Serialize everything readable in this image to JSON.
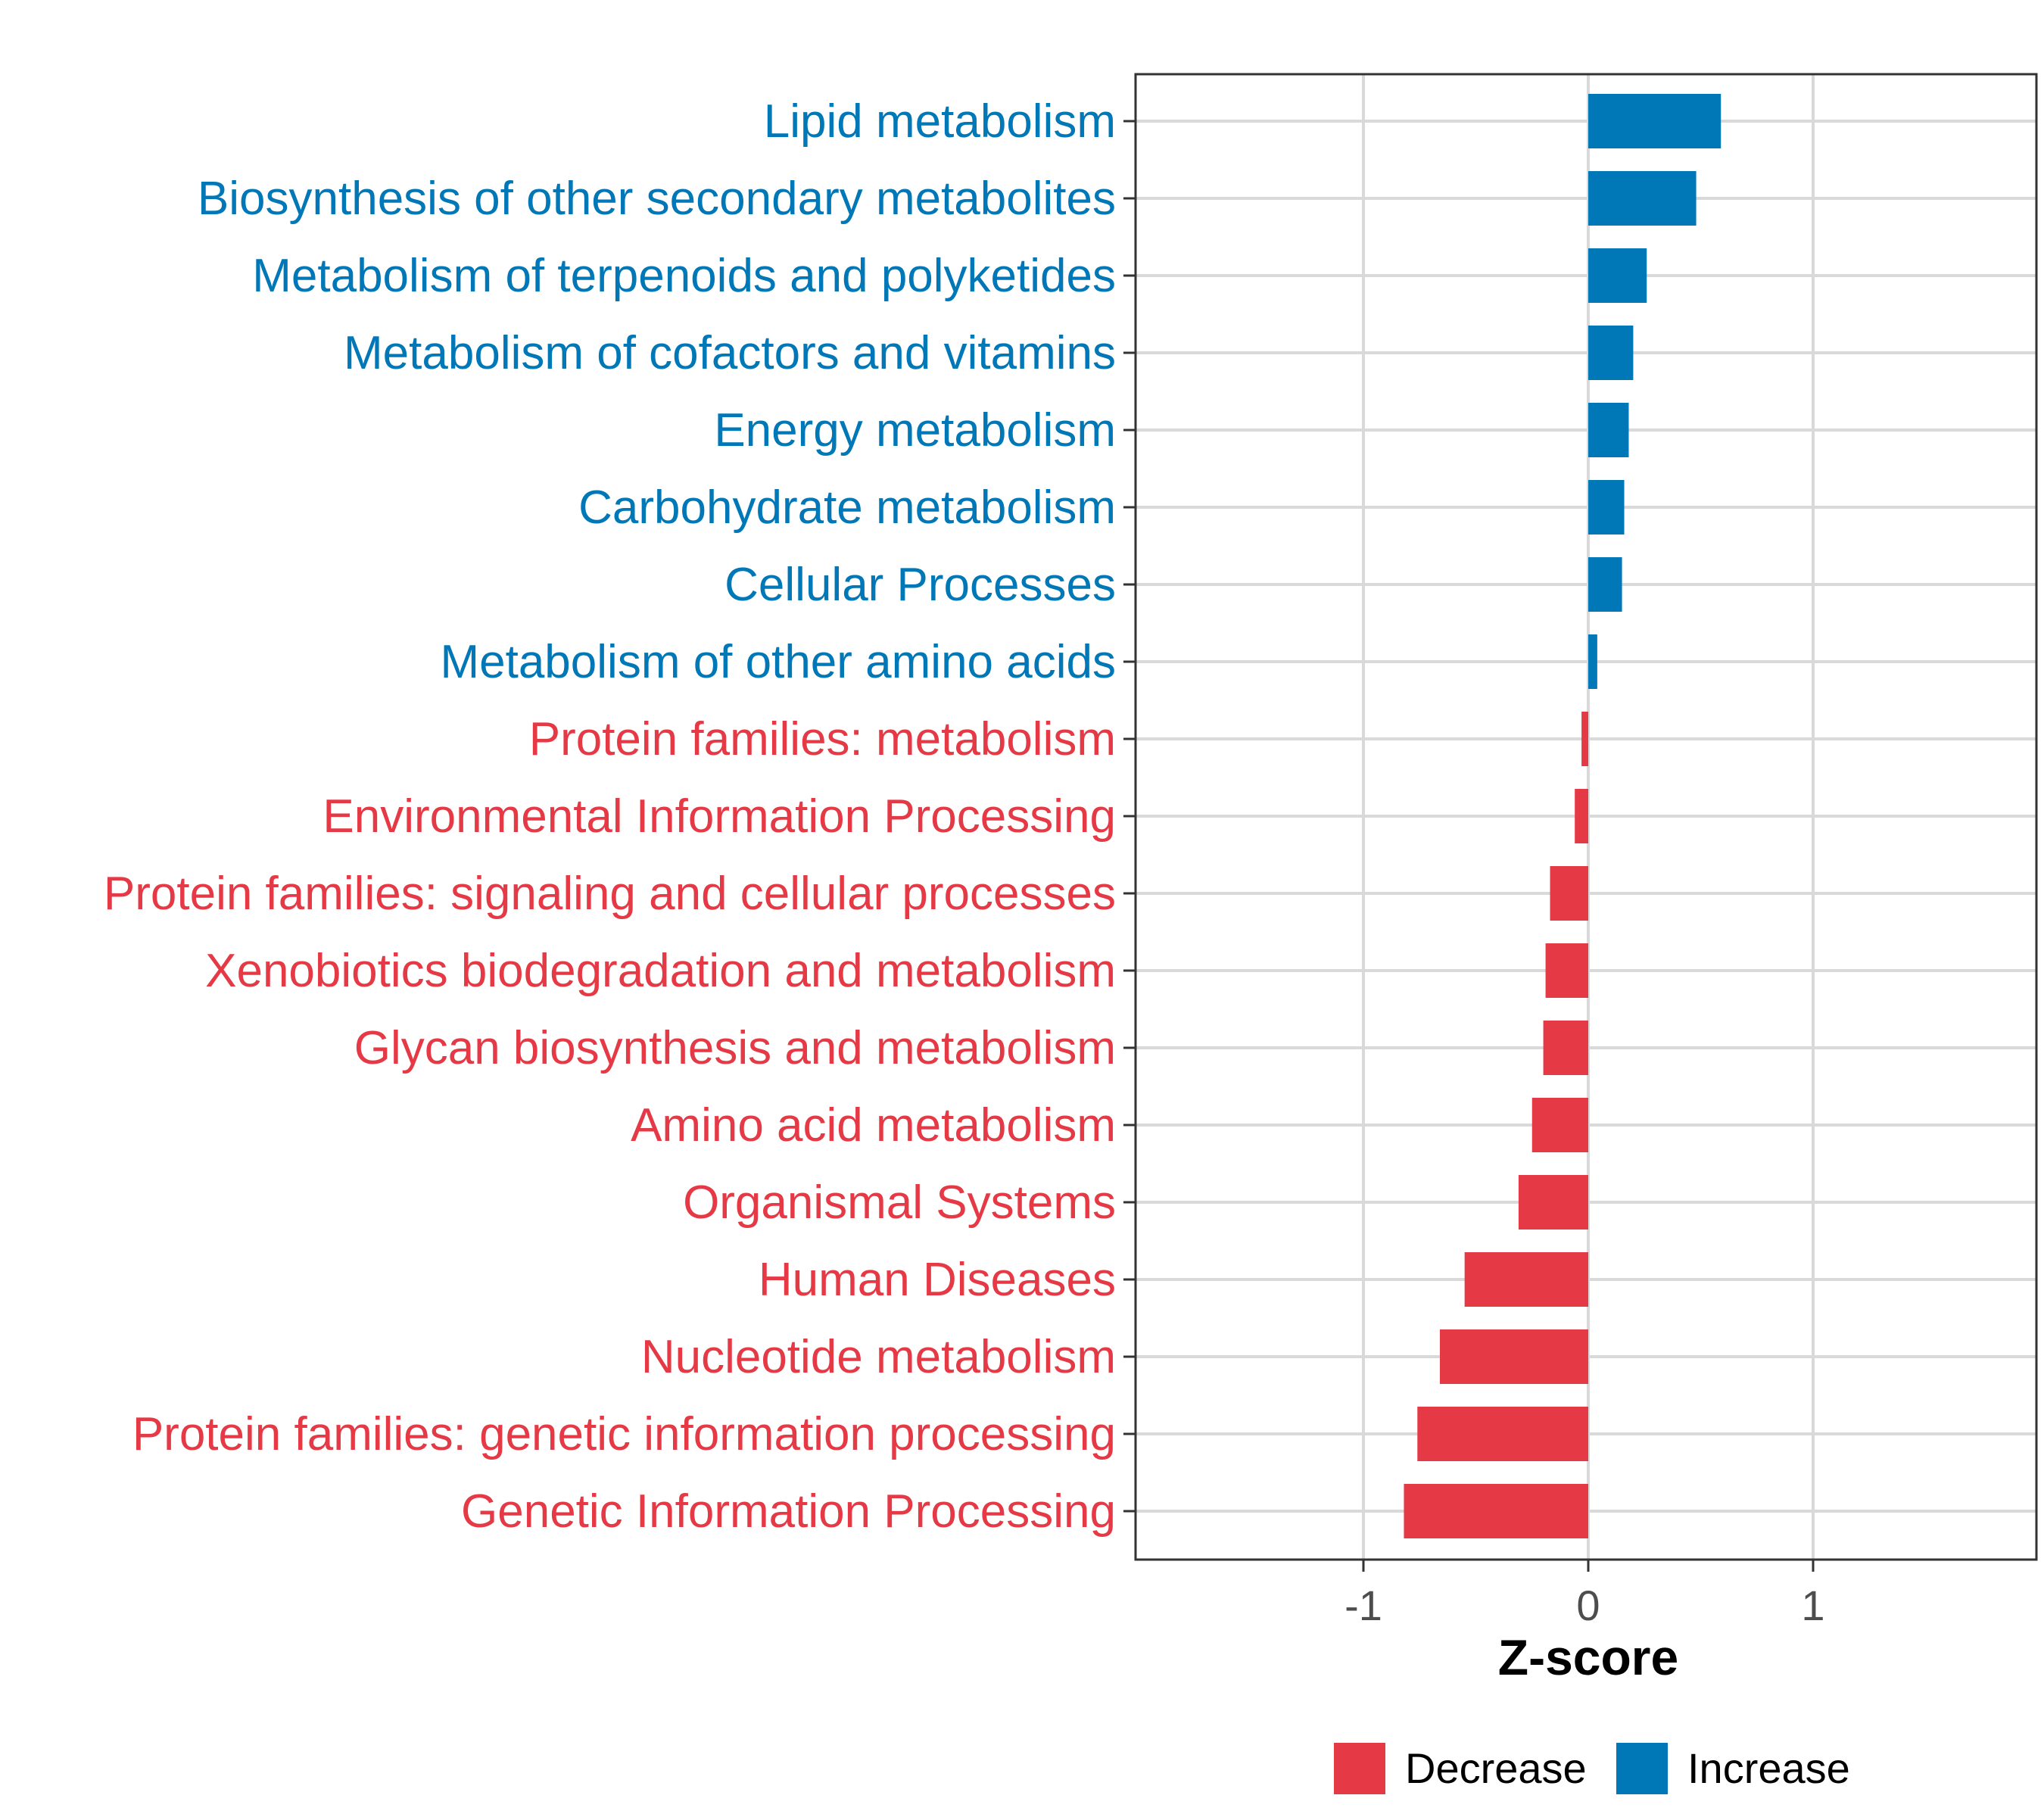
{
  "chart_data": {
    "type": "bar",
    "orientation": "horizontal",
    "title": "",
    "xlabel": "Z-score",
    "ylabel": "",
    "xlim": [
      -2.0,
      2.0
    ],
    "x_ticks": [
      -1,
      0,
      1
    ],
    "x_tick_labels": [
      "-1",
      "0",
      "1"
    ],
    "grid": true,
    "legend_position": "bottom",
    "categories": [
      "Lipid metabolism",
      "Biosynthesis of other secondary metabolites",
      "Metabolism of terpenoids and polyketides",
      "Metabolism of cofactors and vitamins",
      "Energy metabolism",
      "Carbohydrate metabolism",
      "Cellular Processes",
      "Metabolism of other amino acids",
      "Protein families: metabolism",
      "Environmental Information Processing",
      "Protein families: signaling and cellular processes",
      "Xenobiotics biodegradation and metabolism",
      "Glycan biosynthesis and metabolism",
      "Amino acid metabolism",
      "Organismal Systems",
      "Human Diseases",
      "Nucleotide metabolism",
      "Protein families: genetic information processing",
      "Genetic Information Processing"
    ],
    "values": [
      0.59,
      0.48,
      0.26,
      0.2,
      0.18,
      0.16,
      0.15,
      0.04,
      -0.03,
      -0.06,
      -0.17,
      -0.19,
      -0.2,
      -0.25,
      -0.31,
      -0.55,
      -0.66,
      -0.76,
      -0.82
    ],
    "legend": [
      {
        "name": "Decrease",
        "color": "#e63946"
      },
      {
        "name": "Increase",
        "color": "#0077b6"
      }
    ]
  },
  "colors": {
    "decrease": "#e63946",
    "increase": "#0077b6",
    "grid": "#d9d9d9",
    "panel_border": "#333333",
    "tick_text": "#4d4d4d"
  }
}
